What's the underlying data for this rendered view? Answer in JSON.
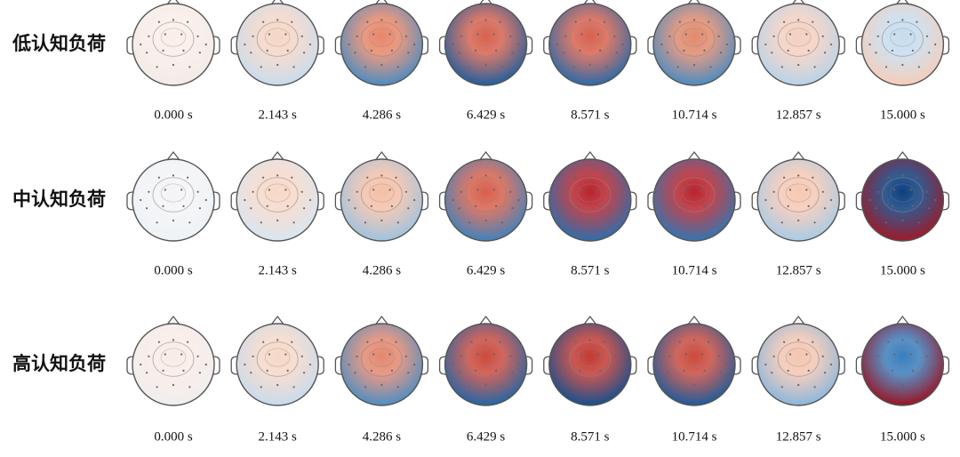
{
  "rows": [
    {
      "label": "低认知负荷",
      "maps": [
        {
          "time": "0.000 s",
          "center": "#faeee8",
          "edge": "#f3ebe8"
        },
        {
          "time": "2.143 s",
          "center": "#f5d6c6",
          "edge": "#c7dced"
        },
        {
          "time": "4.286 s",
          "center": "#e7876a",
          "edge": "#4a8cc2"
        },
        {
          "time": "6.429 s",
          "center": "#d8624f",
          "edge": "#1f5f9e"
        },
        {
          "time": "8.571 s",
          "center": "#d8624f",
          "edge": "#2a6aa8"
        },
        {
          "time": "10.714 s",
          "center": "#e08a6e",
          "edge": "#4a8cc2"
        },
        {
          "time": "12.857 s",
          "center": "#f4d0c0",
          "edge": "#b7d3ea"
        },
        {
          "time": "15.000 s",
          "center": "#c7dcee",
          "edge": "#f5cdb8"
        }
      ]
    },
    {
      "label": "中认知负荷",
      "maps": [
        {
          "time": "0.000 s",
          "center": "#f4f4f6",
          "edge": "#eef2f6"
        },
        {
          "time": "2.143 s",
          "center": "#f7d8c8",
          "edge": "#d8e6f2"
        },
        {
          "time": "4.286 s",
          "center": "#f4c0a8",
          "edge": "#9dc3e0"
        },
        {
          "time": "6.429 s",
          "center": "#d8604c",
          "edge": "#3f82bd"
        },
        {
          "time": "8.571 s",
          "center": "#b8242e",
          "edge": "#2d6fad"
        },
        {
          "time": "10.714 s",
          "center": "#b8242e",
          "edge": "#3276b3"
        },
        {
          "time": "12.857 s",
          "center": "#f6c8b4",
          "edge": "#a8cbe5"
        },
        {
          "time": "15.000 s",
          "center": "#0d3f7e",
          "edge": "#a01a28"
        }
      ]
    },
    {
      "label": "高认知负荷",
      "maps": [
        {
          "time": "0.000 s",
          "center": "#f9ece6",
          "edge": "#f0eeee"
        },
        {
          "time": "2.143 s",
          "center": "#f6d8c8",
          "edge": "#c6dbed"
        },
        {
          "time": "4.286 s",
          "center": "#e38870",
          "edge": "#4d8ec4"
        },
        {
          "time": "6.429 s",
          "center": "#cc4a3e",
          "edge": "#2266a6"
        },
        {
          "time": "8.571 s",
          "center": "#c23a34",
          "edge": "#15508f"
        },
        {
          "time": "10.714 s",
          "center": "#cc4a3e",
          "edge": "#1c5c9c"
        },
        {
          "time": "12.857 s",
          "center": "#f3c6b2",
          "edge": "#8ab6dc"
        },
        {
          "time": "15.000 s",
          "center": "#3a7ebe",
          "edge": "#9a1422"
        }
      ]
    }
  ]
}
